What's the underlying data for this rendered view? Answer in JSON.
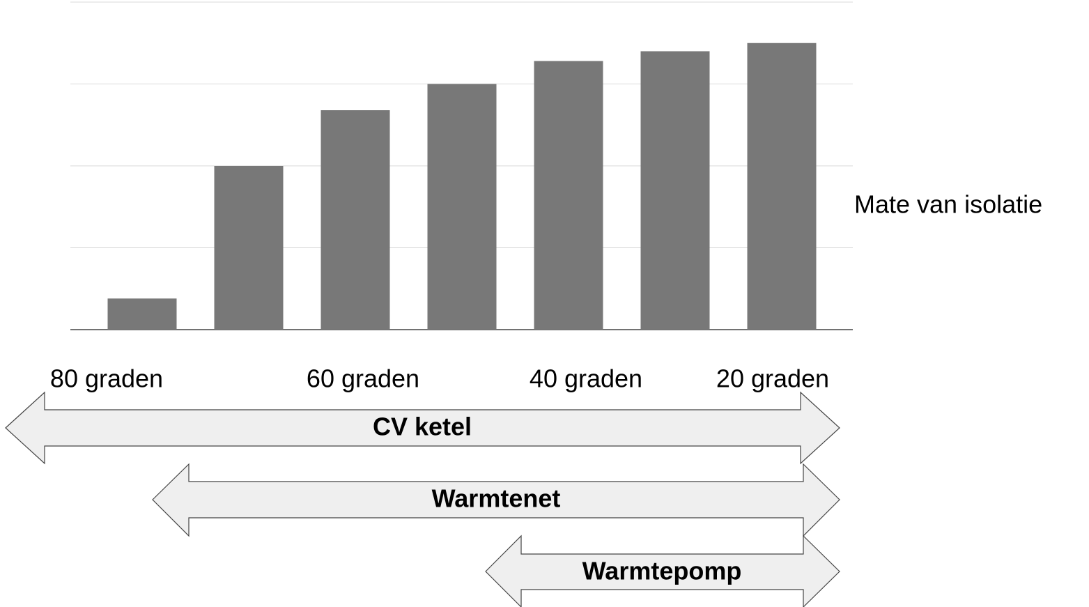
{
  "chart_data": {
    "type": "bar",
    "categories": [
      null,
      null,
      null,
      null,
      null,
      null,
      null
    ],
    "values": [
      0.38,
      2.0,
      2.68,
      3.0,
      3.28,
      3.4,
      3.5
    ],
    "color": "#787878",
    "ylim": [
      0,
      4
    ],
    "yticks": [
      0,
      1,
      2,
      3,
      4
    ],
    "grid": true,
    "axis_label": "Mate van isolatie",
    "x_annotations": [
      "80 graden",
      "60 graden",
      "40 graden",
      "20 graden"
    ]
  },
  "ranges": [
    "CV ketel",
    "Warmtenet",
    "Warmtepomp"
  ]
}
